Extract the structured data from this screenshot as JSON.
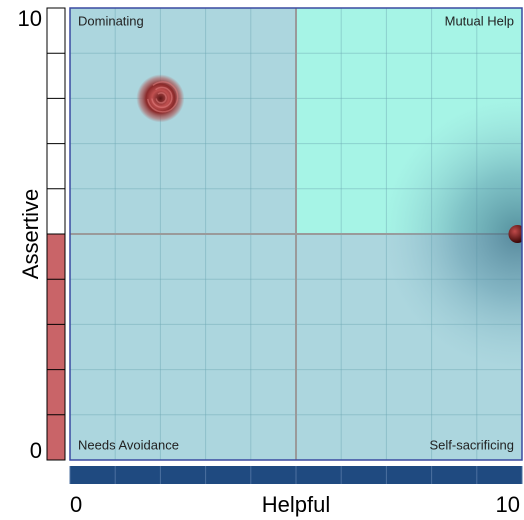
{
  "chart_data": {
    "type": "scatter",
    "x_label": "Helpful",
    "y_label": "Assertive",
    "xlim": [
      0,
      10
    ],
    "ylim": [
      0,
      10
    ],
    "xticks": [
      0,
      10
    ],
    "yticks": [
      0,
      10
    ],
    "grid": true,
    "grid_lines": [
      0,
      1,
      2,
      3,
      4,
      5,
      6,
      7,
      8,
      9,
      10
    ],
    "quadrant_split": 5,
    "annotations": [
      {
        "text": "Dominating",
        "corner": "top-left"
      },
      {
        "text": "Mutual Help",
        "corner": "top-right"
      },
      {
        "text": "Needs Avoidance",
        "corner": "bottom-left"
      },
      {
        "text": "Self-sacrificing",
        "corner": "bottom-right"
      }
    ],
    "series": [
      {
        "x": [
          2
        ],
        "values": [
          8
        ],
        "color": "#a83a3a",
        "marker": "swirl"
      },
      {
        "x": [
          9.9
        ],
        "values": [
          5
        ],
        "color": "#6a1212",
        "marker": "dot"
      }
    ],
    "y_gauge": {
      "value": 5,
      "color": "#c96468"
    },
    "x_gauge": {
      "value": 10,
      "color": "#1f4a80"
    }
  }
}
